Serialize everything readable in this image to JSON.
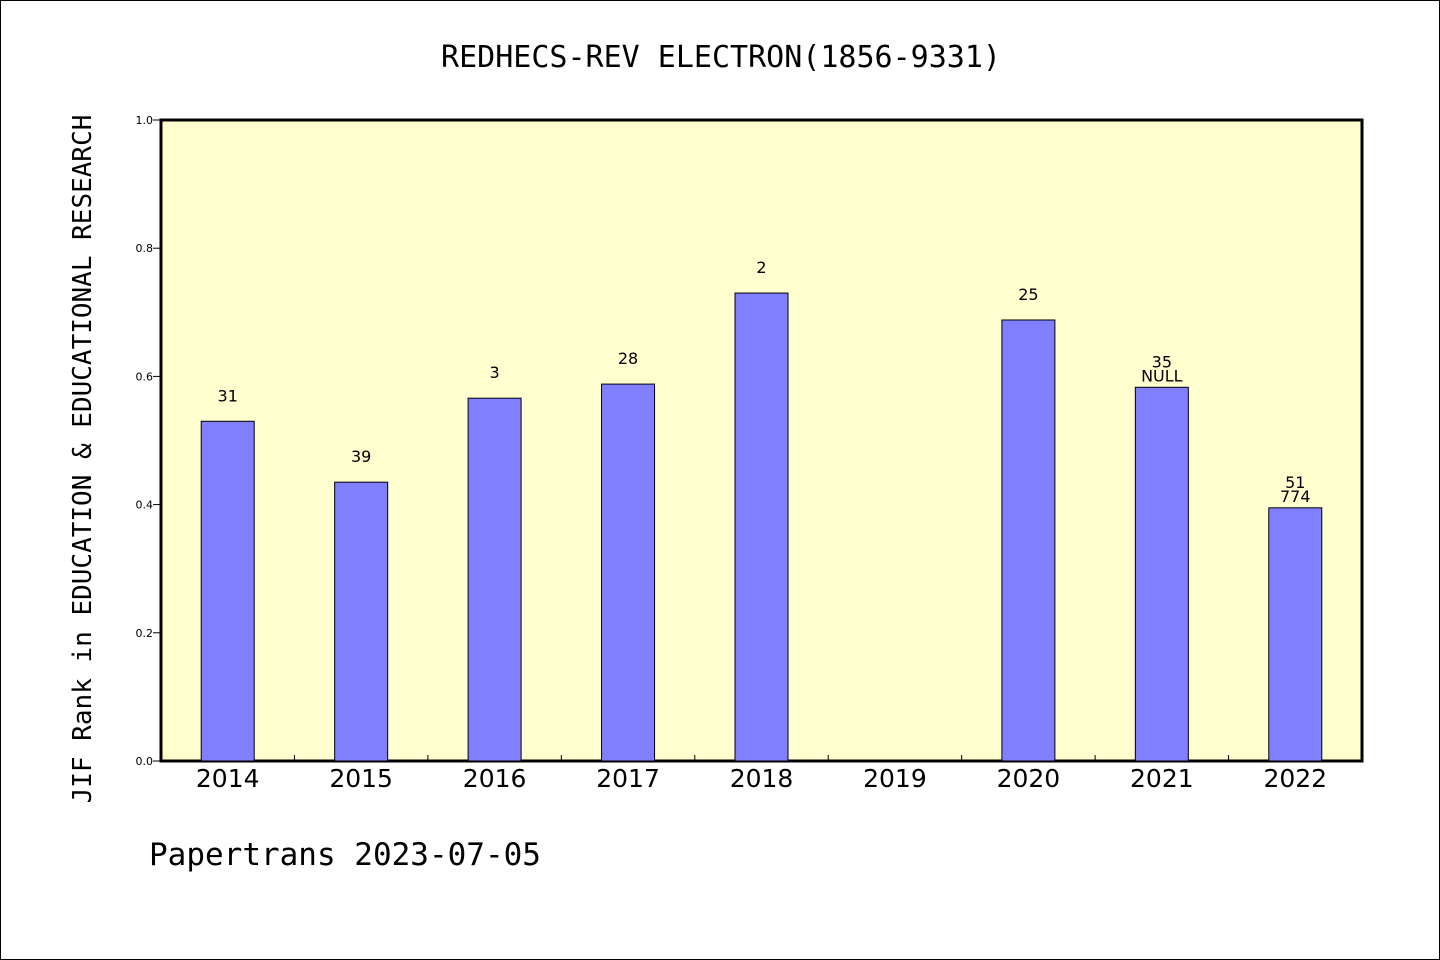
{
  "chart_data": {
    "type": "bar",
    "title": "REDHECS-REV ELECTRON(1856-9331)",
    "xlabel": "",
    "ylabel": "JIF Rank in EDUCATION & EDUCATIONAL RESEARCH",
    "ylim": [
      0,
      1.0
    ],
    "yticks": [
      "0.0",
      "0.2",
      "0.4",
      "0.6",
      "0.8",
      "1.0"
    ],
    "categories": [
      "2014",
      "2015",
      "2016",
      "2017",
      "2018",
      "2019",
      "2020",
      "2021",
      "2022"
    ],
    "values": [
      0.53,
      0.435,
      0.566,
      0.588,
      0.73,
      null,
      0.688,
      0.583,
      0.395
    ],
    "bar_labels": [
      [
        "31"
      ],
      [
        "39"
      ],
      [
        "3"
      ],
      [
        "28"
      ],
      [
        "2"
      ],
      [],
      [
        "25"
      ],
      [
        "35",
        "NULL"
      ],
      [
        "51",
        "774"
      ]
    ],
    "grid": false,
    "legend": "none",
    "colors": {
      "bar": "#8080ff",
      "plot_bg": "#ffffd0",
      "axis": "#000000"
    }
  },
  "footer": {
    "text": "Papertrans 2023-07-05"
  }
}
